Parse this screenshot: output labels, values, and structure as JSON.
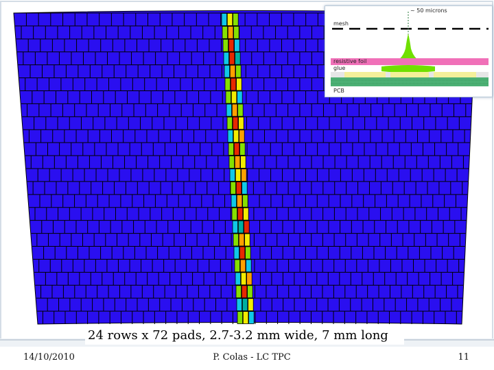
{
  "diagram": {
    "grid": {
      "rows": 24,
      "pads_per_row": 72
    },
    "background_color": "#2a0ff0",
    "grid_line_color": "#000000",
    "track_colors": [
      "#10c8e8",
      "#86e000",
      "#f2ec00",
      "#ffa000",
      "#e82800",
      "#00b0a0"
    ]
  },
  "inset": {
    "top_label": "~ 50 microns",
    "mesh_label": "mesh",
    "foil_label": "resistive foil",
    "glue_label": "glue",
    "pcb_label": "PCB",
    "colors": {
      "foil": "#f070b8",
      "glue": "#70e000",
      "pad": "#f4f09a",
      "pcb": "#4cb074"
    }
  },
  "caption": "24 rows x 72 pads, 2.7-3.2 mm wide, 7 mm long",
  "footer": {
    "date": "14/10/2010",
    "author": "P. Colas - LC TPC",
    "page": "11"
  }
}
